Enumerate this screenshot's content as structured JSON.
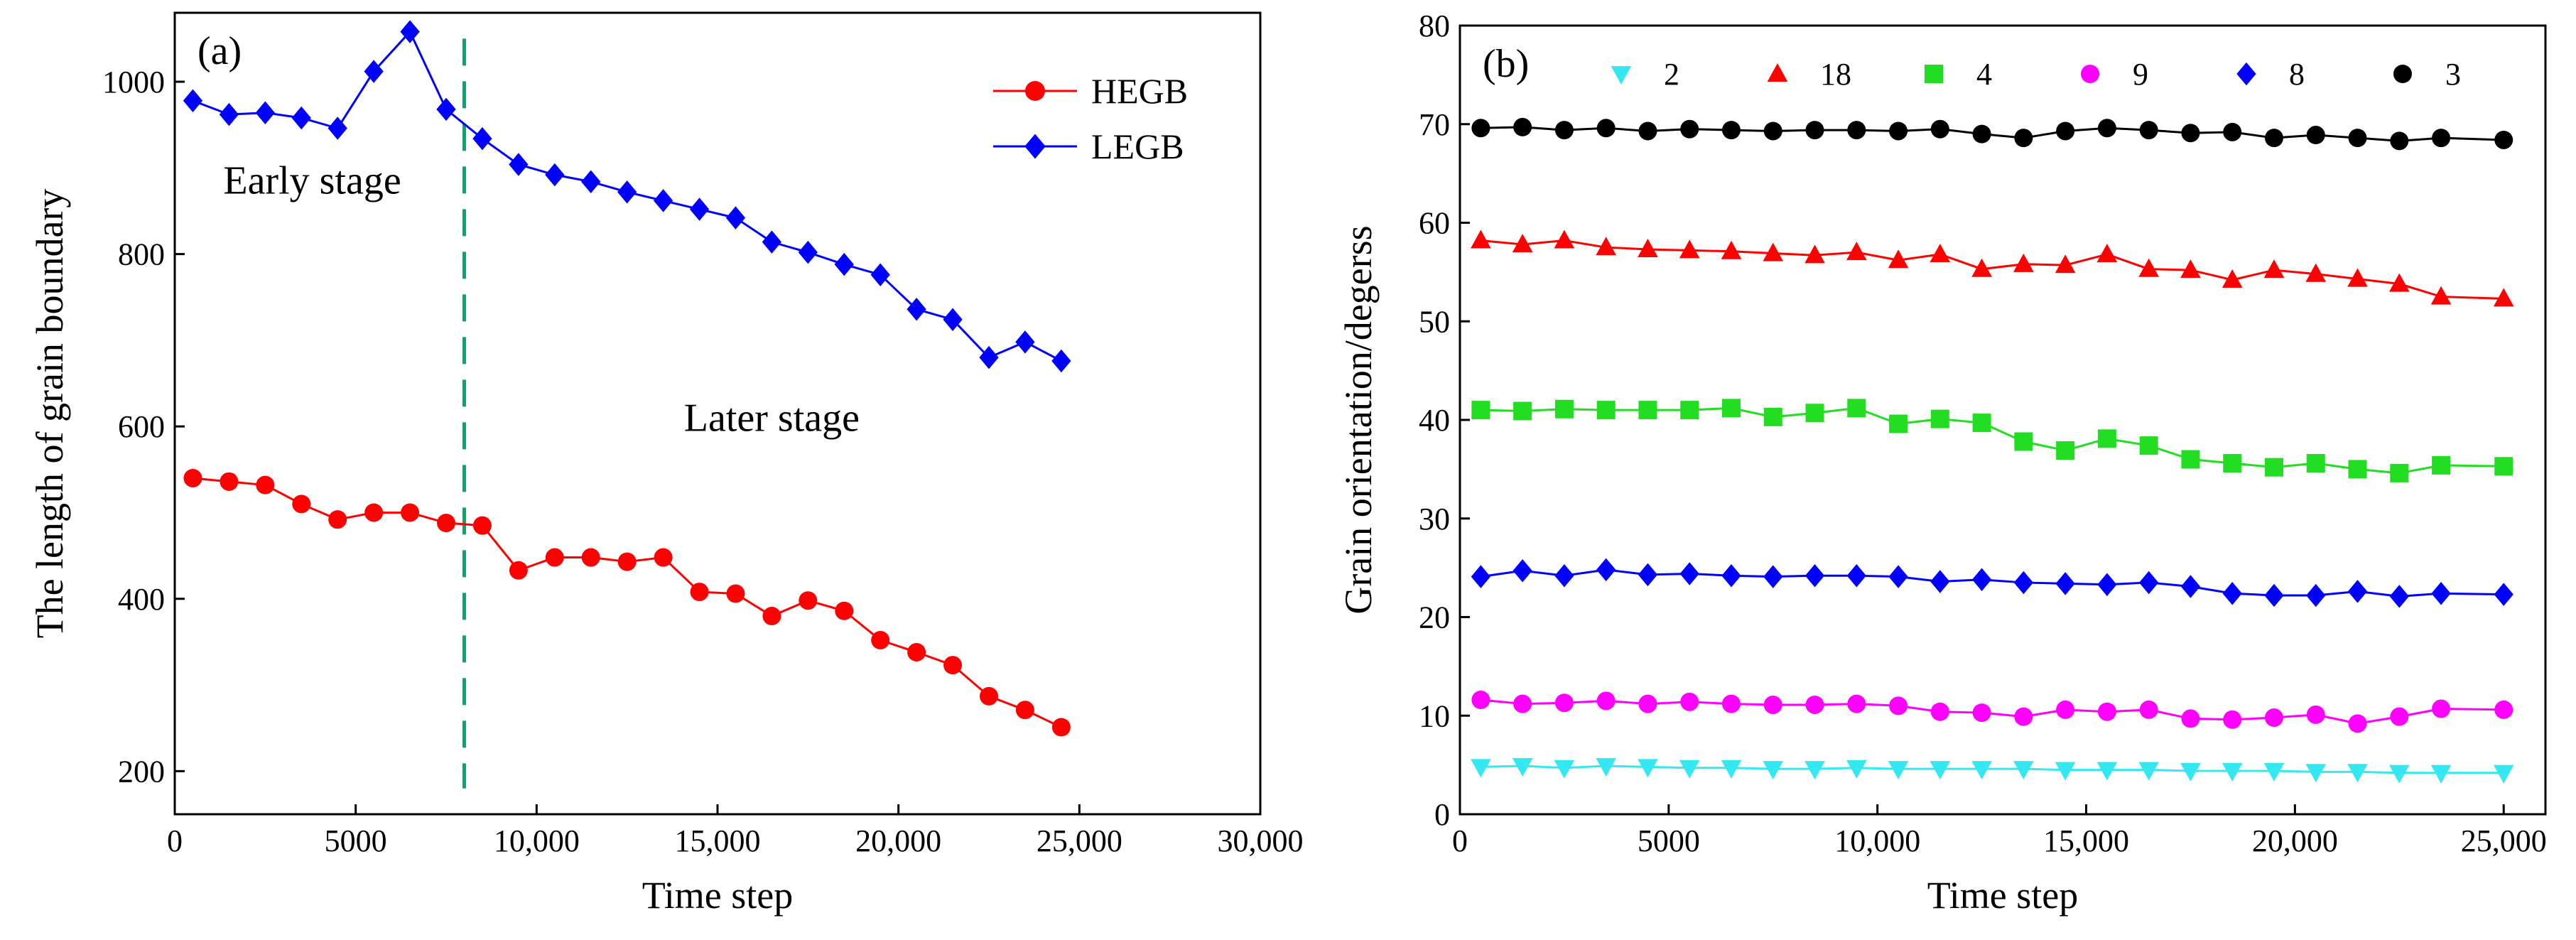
{
  "chart_data": [
    {
      "type": "line",
      "panel_label": "(a)",
      "xlabel": "Time step",
      "ylabel": "The length of grain boundary",
      "xlim": [
        0,
        30000
      ],
      "ylim": [
        150,
        1080
      ],
      "x_ticks": [
        0,
        5000,
        10000,
        15000,
        20000,
        25000,
        30000
      ],
      "x_tick_labels": [
        "0",
        "5000",
        "10,000",
        "15,000",
        "20,000",
        "25,000",
        "30,000"
      ],
      "y_ticks": [
        200,
        400,
        600,
        800,
        1000
      ],
      "y_tick_labels": [
        "200",
        "400",
        "600",
        "800",
        "1000"
      ],
      "legend_position": "top-right",
      "series": [
        {
          "name": "HEGB",
          "color": "#ff0000",
          "marker": "circle",
          "x": [
            500,
            1500,
            2500,
            3500,
            4500,
            5500,
            6500,
            7500,
            8500,
            9500,
            10500,
            11500,
            12500,
            13500,
            14500,
            15500,
            16500,
            17500,
            18500,
            19500,
            20500,
            21500,
            22500,
            23500,
            24500
          ],
          "values": [
            540,
            536,
            532,
            510,
            492,
            500,
            500,
            488,
            485,
            433,
            448,
            448,
            443,
            448,
            408,
            406,
            380,
            398,
            386,
            352,
            338,
            323,
            287,
            271,
            251
          ]
        },
        {
          "name": "LEGB",
          "color": "#0000ff",
          "marker": "diamond",
          "x": [
            500,
            1500,
            2500,
            3500,
            4500,
            5500,
            6500,
            7500,
            8500,
            9500,
            10500,
            11500,
            12500,
            13500,
            14500,
            15500,
            16500,
            17500,
            18500,
            19500,
            20500,
            21500,
            22500,
            23500,
            24500
          ],
          "values": [
            978,
            962,
            964,
            958,
            946,
            1012,
            1058,
            968,
            934,
            904,
            892,
            884,
            872,
            862,
            852,
            842,
            814,
            802,
            788,
            776,
            736,
            724,
            680,
            698,
            676
          ]
        }
      ],
      "annotations": [
        {
          "text": "Early stage",
          "x": 3800,
          "y": 870
        },
        {
          "text": "Later stage",
          "x": 16500,
          "y": 595
        }
      ],
      "divider": {
        "x": 8000,
        "y_range": [
          180,
          1050
        ],
        "color": "#00a86b",
        "style": "dashed"
      }
    },
    {
      "type": "line",
      "panel_label": "(b)",
      "xlabel": "Time step",
      "ylabel": "Grain orientation/degerss",
      "xlim": [
        0,
        26000
      ],
      "ylim": [
        0,
        80
      ],
      "x_ticks": [
        0,
        5000,
        10000,
        15000,
        20000,
        25000
      ],
      "x_tick_labels": [
        "0",
        "5000",
        "10,000",
        "15,000",
        "20,000",
        "25,000"
      ],
      "y_ticks": [
        0,
        10,
        20,
        30,
        40,
        50,
        60,
        70,
        80
      ],
      "y_tick_labels": [
        "0",
        "10",
        "20",
        "30",
        "40",
        "50",
        "60",
        "70",
        "80"
      ],
      "legend_position": "top",
      "x": [
        500,
        1500,
        2500,
        3500,
        4500,
        5500,
        6500,
        7500,
        8500,
        9500,
        10500,
        11500,
        12500,
        13500,
        14500,
        15500,
        16500,
        17500,
        18500,
        19500,
        20500,
        21500,
        22500,
        23500,
        25000
      ],
      "series": [
        {
          "name": "2",
          "color": "#33e8f0",
          "marker": "triangle-down",
          "values": [
            4.8,
            4.9,
            4.7,
            4.9,
            4.8,
            4.7,
            4.7,
            4.6,
            4.6,
            4.7,
            4.6,
            4.6,
            4.6,
            4.6,
            4.5,
            4.5,
            4.5,
            4.4,
            4.4,
            4.4,
            4.3,
            4.3,
            4.2,
            4.2,
            4.2
          ]
        },
        {
          "name": "18",
          "color": "#ff0000",
          "marker": "triangle-up",
          "values": [
            58.2,
            57.8,
            58.2,
            57.5,
            57.3,
            57.2,
            57.1,
            56.9,
            56.7,
            57.0,
            56.2,
            56.8,
            55.3,
            55.8,
            55.7,
            56.8,
            55.3,
            55.2,
            54.2,
            55.2,
            54.8,
            54.3,
            53.8,
            52.5,
            52.3
          ]
        },
        {
          "name": "4",
          "color": "#22dd22",
          "marker": "square",
          "values": [
            41.0,
            40.9,
            41.1,
            41.0,
            41.0,
            41.0,
            41.2,
            40.3,
            40.7,
            41.2,
            39.6,
            40.1,
            39.7,
            37.8,
            36.9,
            38.1,
            37.4,
            36.0,
            35.6,
            35.2,
            35.6,
            35.0,
            34.6,
            35.4,
            35.3
          ]
        },
        {
          "name": "9",
          "color": "#ff00ff",
          "marker": "circle",
          "values": [
            11.6,
            11.2,
            11.3,
            11.5,
            11.2,
            11.4,
            11.2,
            11.1,
            11.1,
            11.2,
            11.0,
            10.4,
            10.3,
            9.9,
            10.6,
            10.4,
            10.6,
            9.7,
            9.6,
            9.8,
            10.1,
            9.2,
            9.9,
            10.7,
            10.6
          ]
        },
        {
          "name": "8",
          "color": "#0000ff",
          "marker": "diamond",
          "values": [
            24.1,
            24.7,
            24.2,
            24.8,
            24.3,
            24.4,
            24.2,
            24.1,
            24.2,
            24.2,
            24.1,
            23.6,
            23.8,
            23.5,
            23.4,
            23.3,
            23.5,
            23.1,
            22.4,
            22.2,
            22.2,
            22.6,
            22.1,
            22.4,
            22.3
          ]
        },
        {
          "name": "3",
          "color": "#000000",
          "marker": "circle",
          "values": [
            69.6,
            69.7,
            69.4,
            69.6,
            69.3,
            69.5,
            69.4,
            69.3,
            69.4,
            69.4,
            69.3,
            69.5,
            69.0,
            68.6,
            69.3,
            69.6,
            69.4,
            69.1,
            69.2,
            68.6,
            68.9,
            68.6,
            68.3,
            68.6,
            68.4
          ]
        }
      ]
    }
  ]
}
